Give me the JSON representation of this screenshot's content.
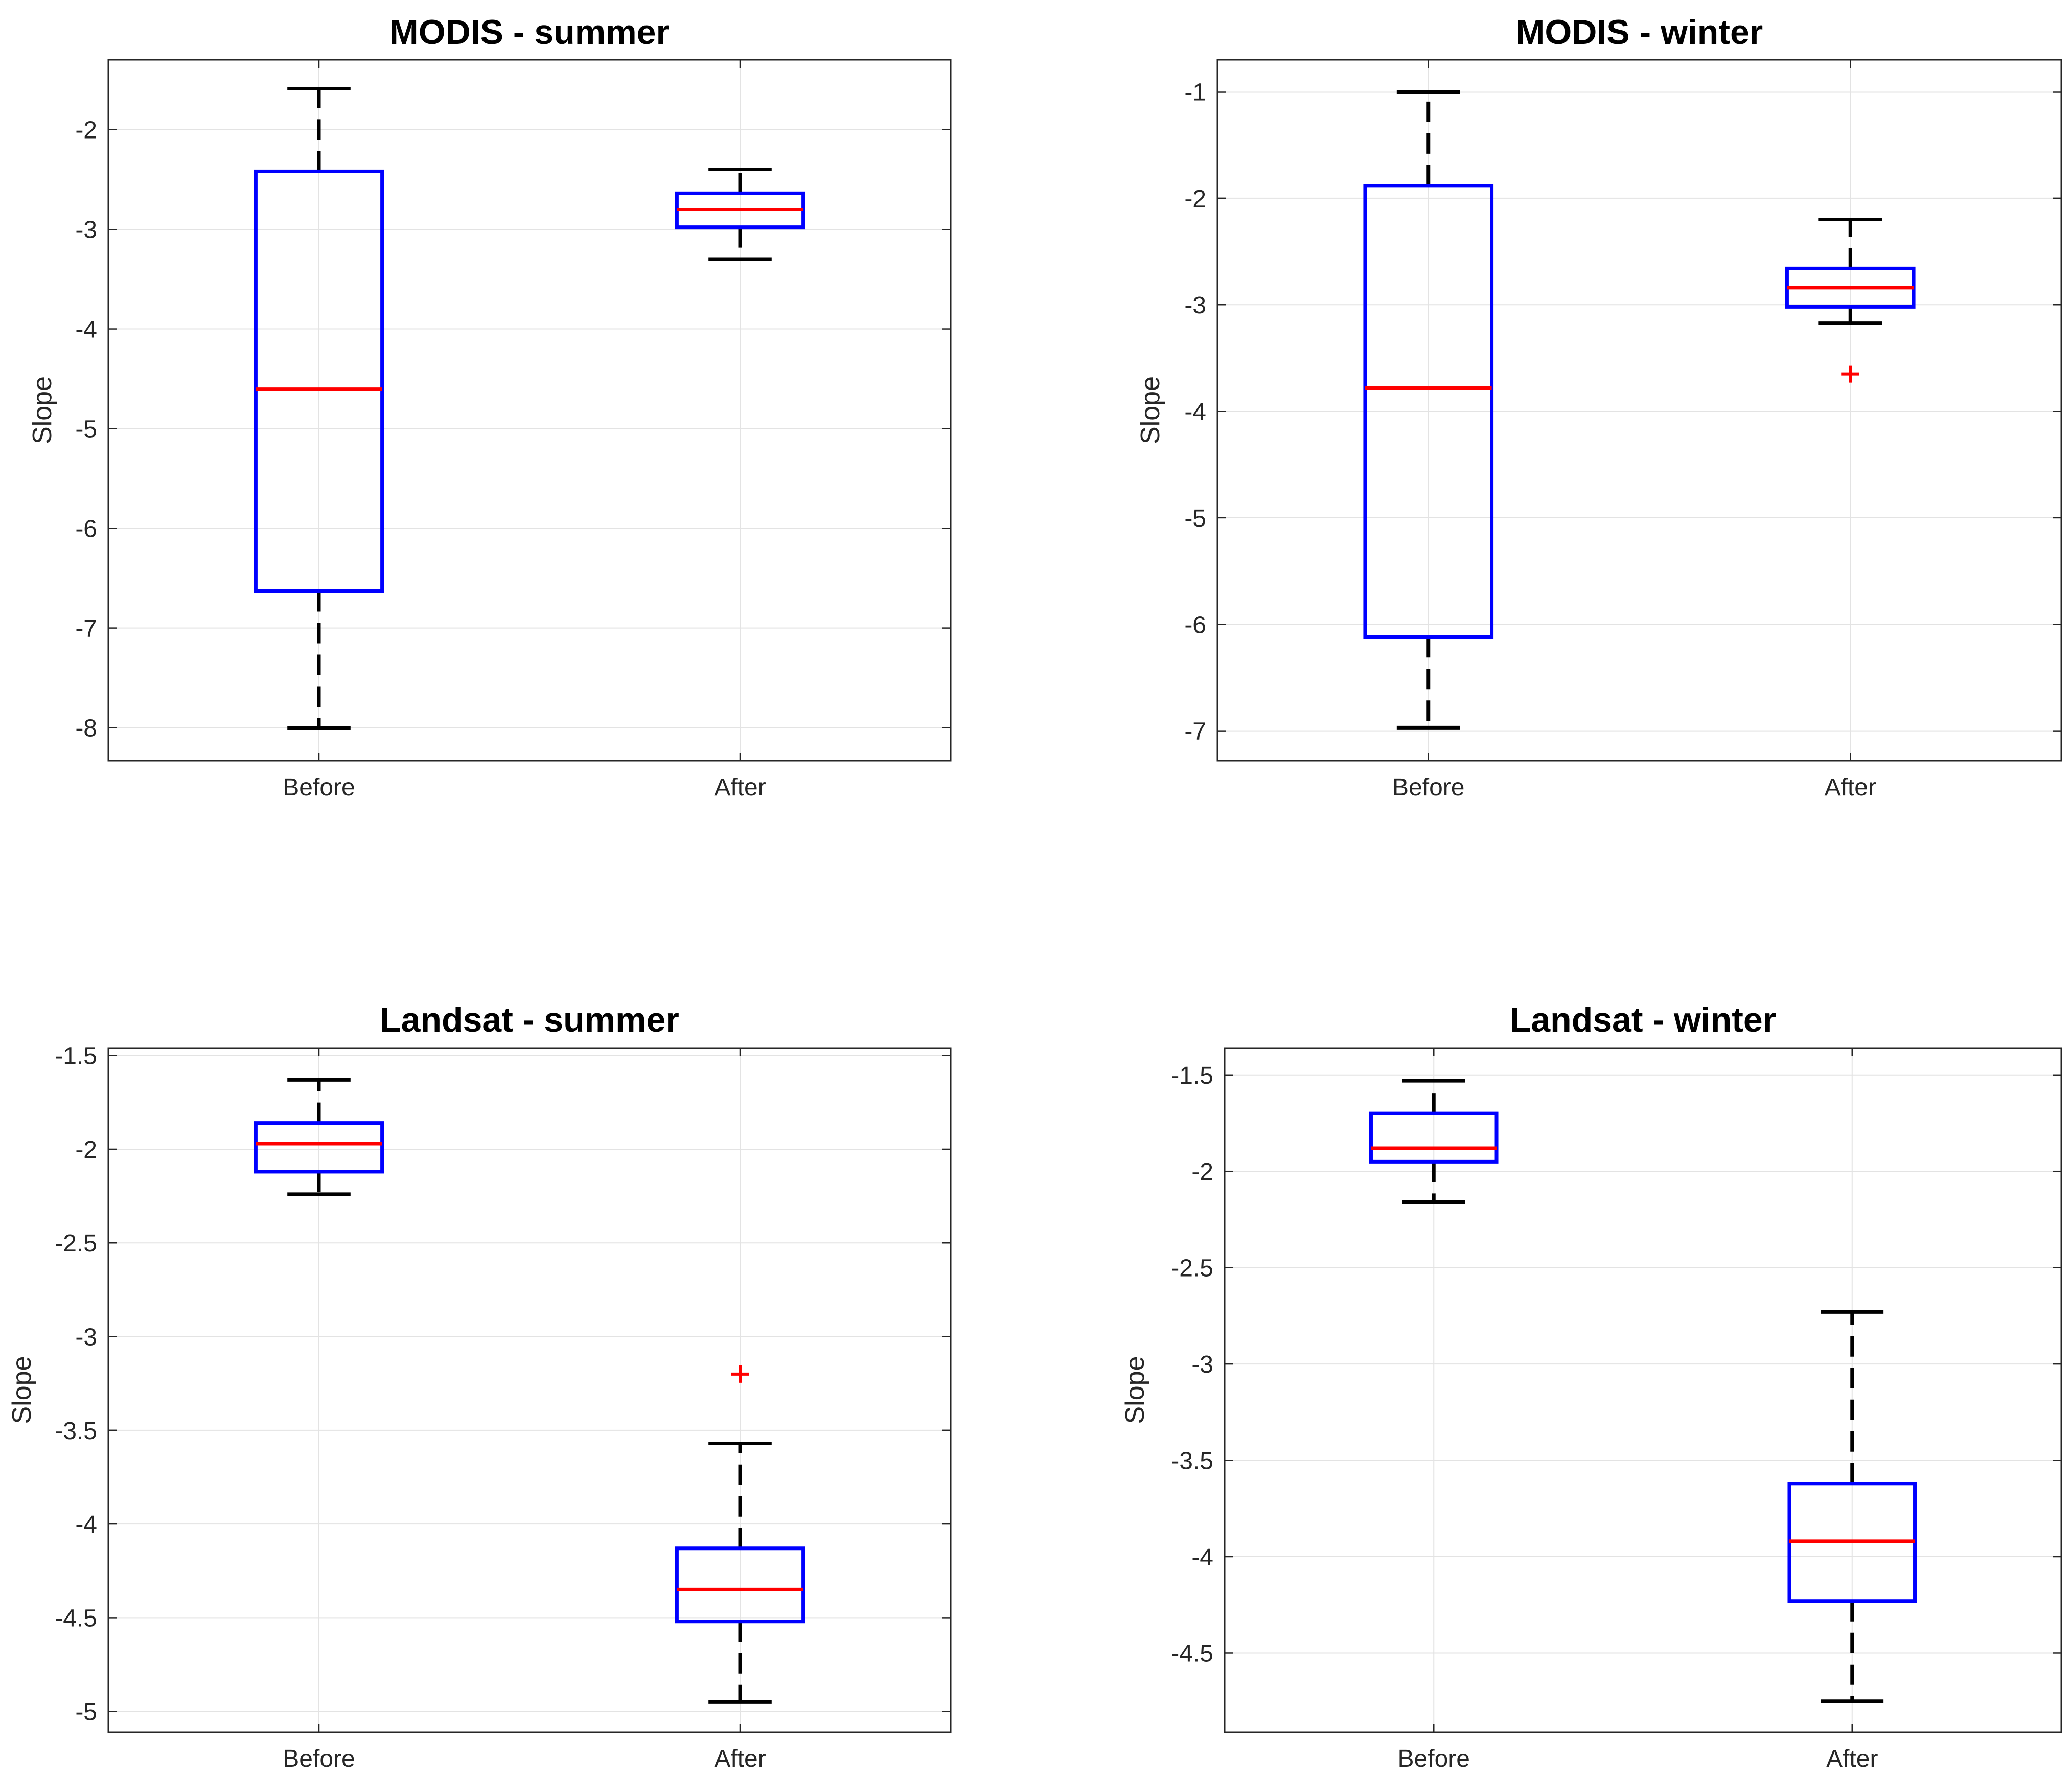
{
  "chart_data": [
    {
      "type": "box",
      "title": "MODIS - summer",
      "xlabel": "",
      "ylabel": "Slope",
      "ylim": [
        -8.33,
        -1.3
      ],
      "yticks": [
        -8,
        -7,
        -6,
        -5,
        -4,
        -3,
        -2
      ],
      "categories": [
        "Before",
        "After"
      ],
      "boxes": [
        {
          "category": "Before",
          "whisker_low": -8.0,
          "q1": -6.63,
          "median": -4.6,
          "q3": -2.42,
          "whisker_high": -1.59,
          "outliers": []
        },
        {
          "category": "After",
          "whisker_low": -3.3,
          "q1": -2.98,
          "median": -2.8,
          "q3": -2.64,
          "whisker_high": -2.4,
          "outliers": []
        }
      ],
      "colors": {
        "box": "#0000ff",
        "median": "#ff0000",
        "whisker": "#000000",
        "outlier": "#ff0000"
      },
      "grid": true
    },
    {
      "type": "box",
      "title": "MODIS - winter",
      "xlabel": "",
      "ylabel": "Slope",
      "ylim": [
        -7.28,
        -0.7
      ],
      "yticks": [
        -7,
        -6,
        -5,
        -4,
        -3,
        -2,
        -1
      ],
      "categories": [
        "Before",
        "After"
      ],
      "boxes": [
        {
          "category": "Before",
          "whisker_low": -6.97,
          "q1": -6.12,
          "median": -3.78,
          "q3": -1.88,
          "whisker_high": -1.0,
          "outliers": []
        },
        {
          "category": "After",
          "whisker_low": -3.17,
          "q1": -3.02,
          "median": -2.84,
          "q3": -2.66,
          "whisker_high": -2.2,
          "outliers": [
            -3.65
          ]
        }
      ],
      "colors": {
        "box": "#0000ff",
        "median": "#ff0000",
        "whisker": "#000000",
        "outlier": "#ff0000"
      },
      "grid": true
    },
    {
      "type": "box",
      "title": "Landsat - summer",
      "xlabel": "",
      "ylabel": "Slope",
      "ylim": [
        -5.11,
        -1.46
      ],
      "yticks": [
        -5,
        -4.5,
        -4,
        -3.5,
        -3,
        -2.5,
        -2,
        -1.5
      ],
      "categories": [
        "Before",
        "After"
      ],
      "boxes": [
        {
          "category": "Before",
          "whisker_low": -2.24,
          "q1": -2.12,
          "median": -1.97,
          "q3": -1.86,
          "whisker_high": -1.63,
          "outliers": []
        },
        {
          "category": "After",
          "whisker_low": -4.95,
          "q1": -4.52,
          "median": -4.35,
          "q3": -4.13,
          "whisker_high": -3.57,
          "outliers": [
            -3.2
          ]
        }
      ],
      "colors": {
        "box": "#0000ff",
        "median": "#ff0000",
        "whisker": "#000000",
        "outlier": "#ff0000"
      },
      "grid": true
    },
    {
      "type": "box",
      "title": "Landsat - winter",
      "xlabel": "",
      "ylabel": "Slope",
      "ylim": [
        -4.91,
        -1.36
      ],
      "yticks": [
        -4.5,
        -4,
        -3.5,
        -3,
        -2.5,
        -2,
        -1.5
      ],
      "categories": [
        "Before",
        "After"
      ],
      "boxes": [
        {
          "category": "Before",
          "whisker_low": -2.16,
          "q1": -1.95,
          "median": -1.88,
          "q3": -1.7,
          "whisker_high": -1.53,
          "outliers": []
        },
        {
          "category": "After",
          "whisker_low": -4.75,
          "q1": -4.23,
          "median": -3.92,
          "q3": -3.62,
          "whisker_high": -2.73,
          "outliers": []
        }
      ],
      "colors": {
        "box": "#0000ff",
        "median": "#ff0000",
        "whisker": "#000000",
        "outlier": "#ff0000"
      },
      "grid": true
    }
  ]
}
